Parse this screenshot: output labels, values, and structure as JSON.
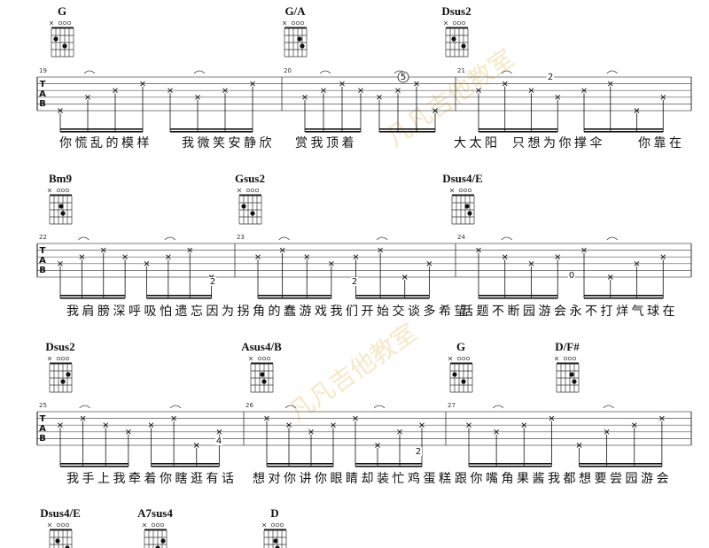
{
  "watermark": "凡凡吉他教室",
  "tab_label": [
    "T",
    "A",
    "B"
  ],
  "systems": [
    {
      "chords": [
        "G",
        "G/A",
        "Dsus2"
      ],
      "measures": [
        "19",
        "20",
        "21"
      ],
      "lyrics": [
        "你慌乱的模样",
        "我微笑安静欣",
        "赏我顶着",
        "大太阳",
        "只想为你撑伞",
        "你靠在"
      ],
      "frets": [
        "5",
        "2"
      ]
    },
    {
      "chords": [
        "Bm9",
        "Gsus2",
        "Dsus4/E"
      ],
      "measures": [
        "22",
        "23",
        "24"
      ],
      "lyrics": [
        "我肩膀深呼吸怕遗忘因为拐角的蠢游戏我们开始交谈多希望",
        "话题不断园游会永不打烊气球在"
      ],
      "frets": [
        "2",
        "2",
        "0"
      ]
    },
    {
      "chords": [
        "Dsus2",
        "Asus4/B",
        "G",
        "D/F#"
      ],
      "measures": [
        "25",
        "26",
        "27"
      ],
      "lyrics": [
        "我手上我牵着你瞎逛有话",
        "想对你讲你眼睛却装忙鸡蛋糕",
        "跟你嘴角果酱我都想要尝园游会"
      ],
      "frets": [
        "4",
        "2"
      ]
    },
    {
      "chords": [
        "Dsus4/E",
        "A7sus4",
        "D"
      ],
      "measures": [],
      "lyrics": [],
      "frets": []
    }
  ]
}
